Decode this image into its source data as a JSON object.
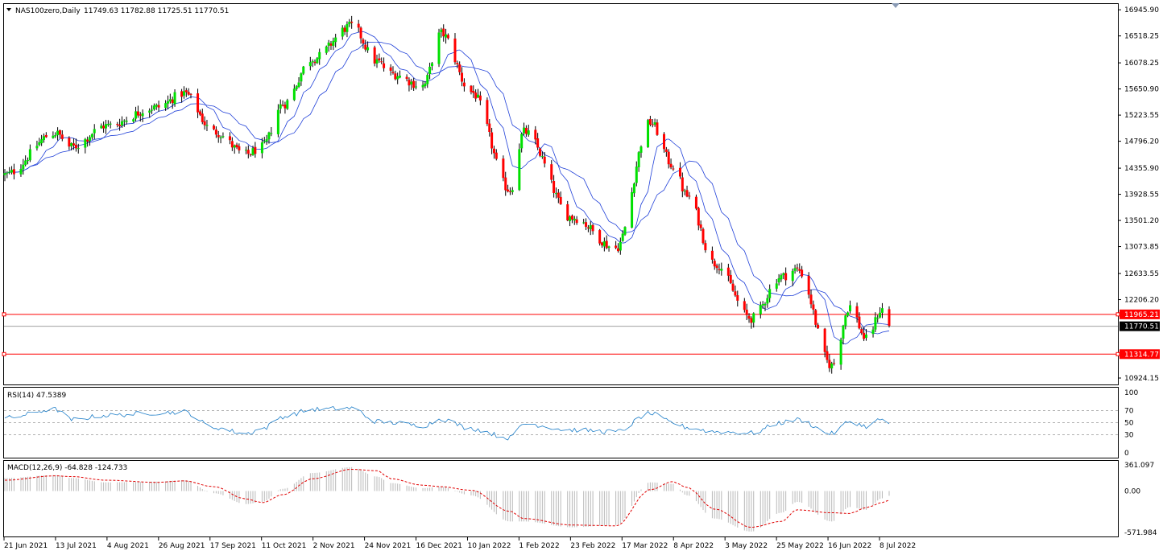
{
  "colors": {
    "background": "#ffffff",
    "frame": "#000000",
    "bull_candle": "#00e000",
    "bear_candle": "#ff0000",
    "wick": "#000000",
    "ma": "#1f3fd8",
    "level_line": "#ff0000",
    "price_line": "#a0a0a0",
    "rsi_line": "#1e7ec8",
    "rsi_levels": "#b0b0b0",
    "macd_hist": "#b8b8b8",
    "macd_signal": "#e00000"
  },
  "chart_data": [
    {
      "type": "candlestick",
      "title": "NAS100zero,Daily",
      "ohlc_header": "11749.63 11782.88 11725.51 11770.51",
      "ylim": [
        10924.15,
        17040
      ],
      "yticks": [
        "16945.90",
        "16518.25",
        "16078.25",
        "15650.90",
        "15223.55",
        "14796.20",
        "14355.90",
        "13928.55",
        "13501.20",
        "13073.85",
        "12633.55",
        "12206.20",
        "10924.15"
      ],
      "x_labels": [
        "21 Jun 2021",
        "13 Jul 2021",
        "4 Aug 2021",
        "26 Aug 2021",
        "17 Sep 2021",
        "11 Oct 2021",
        "2 Nov 2021",
        "24 Nov 2021",
        "16 Dec 2021",
        "10 Jan 2022",
        "1 Feb 2022",
        "23 Feb 2022",
        "17 Mar 2022",
        "8 Apr 2022",
        "3 May 2022",
        "25 May 2022",
        "16 Jun 2022",
        "8 Jul 2022"
      ],
      "x_start": "2021-06-21",
      "x_end": "2022-07-11",
      "horizontal_levels": [
        {
          "label": "11965.21",
          "value": 11965.21
        },
        {
          "label": "11314.77",
          "value": 11314.77
        }
      ],
      "current_price": {
        "label": "11770.51",
        "value": 11770.51
      },
      "close_path": [
        {
          "date": "2021-06-21",
          "value": 14250
        },
        {
          "date": "2021-07-13",
          "value": 14930
        },
        {
          "date": "2021-07-20",
          "value": 14700
        },
        {
          "date": "2021-08-04",
          "value": 15050
        },
        {
          "date": "2021-08-26",
          "value": 15350
        },
        {
          "date": "2021-09-07",
          "value": 15580
        },
        {
          "date": "2021-09-20",
          "value": 14950
        },
        {
          "date": "2021-10-04",
          "value": 14580
        },
        {
          "date": "2021-10-11",
          "value": 14700
        },
        {
          "date": "2021-10-20",
          "value": 15400
        },
        {
          "date": "2021-11-02",
          "value": 16150
        },
        {
          "date": "2021-11-19",
          "value": 16680
        },
        {
          "date": "2021-11-30",
          "value": 16100
        },
        {
          "date": "2021-12-06",
          "value": 15900
        },
        {
          "date": "2021-12-20",
          "value": 15700
        },
        {
          "date": "2021-12-28",
          "value": 16560
        },
        {
          "date": "2022-01-10",
          "value": 15600
        },
        {
          "date": "2022-01-27",
          "value": 14000
        },
        {
          "date": "2022-02-02",
          "value": 14950
        },
        {
          "date": "2022-02-23",
          "value": 13550
        },
        {
          "date": "2022-03-14",
          "value": 13050
        },
        {
          "date": "2022-03-29",
          "value": 15100
        },
        {
          "date": "2022-04-08",
          "value": 14400
        },
        {
          "date": "2022-04-14",
          "value": 13900
        },
        {
          "date": "2022-04-26",
          "value": 12800
        },
        {
          "date": "2022-05-12",
          "value": 11900
        },
        {
          "date": "2022-05-25",
          "value": 12580
        },
        {
          "date": "2022-06-01",
          "value": 12700
        },
        {
          "date": "2022-06-16",
          "value": 11130
        },
        {
          "date": "2022-06-24",
          "value": 12100
        },
        {
          "date": "2022-07-01",
          "value": 11560
        },
        {
          "date": "2022-07-08",
          "value": 12050
        },
        {
          "date": "2022-07-11",
          "value": 11770
        }
      ]
    },
    {
      "type": "line",
      "title": "RSI(14) 47.5389",
      "ylim": [
        0,
        100
      ],
      "yticks": [
        "100",
        "70",
        "50",
        "30",
        "0"
      ],
      "levels": [
        30,
        50,
        70
      ],
      "rsi_path": [
        {
          "date": "2021-06-21",
          "value": 58
        },
        {
          "date": "2021-07-13",
          "value": 72
        },
        {
          "date": "2021-07-20",
          "value": 55
        },
        {
          "date": "2021-08-04",
          "value": 62
        },
        {
          "date": "2021-08-26",
          "value": 66
        },
        {
          "date": "2021-09-07",
          "value": 68
        },
        {
          "date": "2021-09-20",
          "value": 42
        },
        {
          "date": "2021-10-04",
          "value": 32
        },
        {
          "date": "2021-10-11",
          "value": 40
        },
        {
          "date": "2021-10-20",
          "value": 60
        },
        {
          "date": "2021-11-02",
          "value": 72
        },
        {
          "date": "2021-11-19",
          "value": 74
        },
        {
          "date": "2021-11-30",
          "value": 52
        },
        {
          "date": "2021-12-06",
          "value": 50
        },
        {
          "date": "2021-12-20",
          "value": 45
        },
        {
          "date": "2021-12-28",
          "value": 56
        },
        {
          "date": "2022-01-10",
          "value": 40
        },
        {
          "date": "2022-01-27",
          "value": 25
        },
        {
          "date": "2022-02-02",
          "value": 48
        },
        {
          "date": "2022-02-23",
          "value": 38
        },
        {
          "date": "2022-03-14",
          "value": 35
        },
        {
          "date": "2022-03-29",
          "value": 65
        },
        {
          "date": "2022-04-08",
          "value": 50
        },
        {
          "date": "2022-04-14",
          "value": 42
        },
        {
          "date": "2022-04-26",
          "value": 35
        },
        {
          "date": "2022-05-12",
          "value": 33
        },
        {
          "date": "2022-05-25",
          "value": 50
        },
        {
          "date": "2022-06-01",
          "value": 55
        },
        {
          "date": "2022-06-16",
          "value": 32
        },
        {
          "date": "2022-06-24",
          "value": 52
        },
        {
          "date": "2022-07-01",
          "value": 44
        },
        {
          "date": "2022-07-08",
          "value": 56
        },
        {
          "date": "2022-07-11",
          "value": 47.5
        }
      ]
    },
    {
      "type": "bar",
      "title": "MACD(12,26,9) -64.828 -124.733",
      "ylim": [
        -571.984,
        361.097
      ],
      "yticks": [
        "361.097",
        "0.00",
        "-571.984"
      ],
      "macd_path": [
        {
          "date": "2021-06-21",
          "value": 180
        },
        {
          "date": "2021-07-13",
          "value": 220
        },
        {
          "date": "2021-07-20",
          "value": 180
        },
        {
          "date": "2021-08-04",
          "value": 120
        },
        {
          "date": "2021-08-26",
          "value": 130
        },
        {
          "date": "2021-09-07",
          "value": 150
        },
        {
          "date": "2021-09-20",
          "value": -30
        },
        {
          "date": "2021-10-04",
          "value": -180
        },
        {
          "date": "2021-10-11",
          "value": -150
        },
        {
          "date": "2021-10-20",
          "value": 30
        },
        {
          "date": "2021-11-02",
          "value": 250
        },
        {
          "date": "2021-11-19",
          "value": 330
        },
        {
          "date": "2021-11-30",
          "value": 200
        },
        {
          "date": "2021-12-06",
          "value": 110
        },
        {
          "date": "2021-12-20",
          "value": 40
        },
        {
          "date": "2021-12-28",
          "value": 60
        },
        {
          "date": "2022-01-10",
          "value": -60
        },
        {
          "date": "2022-01-27",
          "value": -420
        },
        {
          "date": "2022-02-02",
          "value": -420
        },
        {
          "date": "2022-02-23",
          "value": -500
        },
        {
          "date": "2022-03-14",
          "value": -470
        },
        {
          "date": "2022-03-29",
          "value": 120
        },
        {
          "date": "2022-04-08",
          "value": 100
        },
        {
          "date": "2022-04-14",
          "value": -60
        },
        {
          "date": "2022-04-26",
          "value": -380
        },
        {
          "date": "2022-05-12",
          "value": -560
        },
        {
          "date": "2022-05-25",
          "value": -300
        },
        {
          "date": "2022-06-01",
          "value": -150
        },
        {
          "date": "2022-06-16",
          "value": -420
        },
        {
          "date": "2022-06-24",
          "value": -220
        },
        {
          "date": "2022-07-01",
          "value": -260
        },
        {
          "date": "2022-07-08",
          "value": -100
        },
        {
          "date": "2022-07-11",
          "value": -65
        }
      ],
      "signal_path": [
        {
          "date": "2021-06-21",
          "value": 150
        },
        {
          "date": "2021-07-13",
          "value": 210
        },
        {
          "date": "2021-07-20",
          "value": 200
        },
        {
          "date": "2021-08-04",
          "value": 150
        },
        {
          "date": "2021-08-26",
          "value": 120
        },
        {
          "date": "2021-09-07",
          "value": 140
        },
        {
          "date": "2021-09-20",
          "value": 60
        },
        {
          "date": "2021-10-04",
          "value": -110
        },
        {
          "date": "2021-10-11",
          "value": -160
        },
        {
          "date": "2021-10-20",
          "value": -50
        },
        {
          "date": "2021-11-02",
          "value": 170
        },
        {
          "date": "2021-11-19",
          "value": 300
        },
        {
          "date": "2021-11-30",
          "value": 280
        },
        {
          "date": "2021-12-06",
          "value": 170
        },
        {
          "date": "2021-12-20",
          "value": 80
        },
        {
          "date": "2021-12-28",
          "value": 60
        },
        {
          "date": "2022-01-10",
          "value": 10
        },
        {
          "date": "2022-01-27",
          "value": -280
        },
        {
          "date": "2022-02-02",
          "value": -380
        },
        {
          "date": "2022-02-23",
          "value": -470
        },
        {
          "date": "2022-03-14",
          "value": -480
        },
        {
          "date": "2022-03-29",
          "value": 20
        },
        {
          "date": "2022-04-08",
          "value": 130
        },
        {
          "date": "2022-04-14",
          "value": 50
        },
        {
          "date": "2022-04-26",
          "value": -250
        },
        {
          "date": "2022-05-12",
          "value": -500
        },
        {
          "date": "2022-05-25",
          "value": -420
        },
        {
          "date": "2022-06-01",
          "value": -260
        },
        {
          "date": "2022-06-16",
          "value": -300
        },
        {
          "date": "2022-06-24",
          "value": -310
        },
        {
          "date": "2022-07-01",
          "value": -230
        },
        {
          "date": "2022-07-08",
          "value": -160
        },
        {
          "date": "2022-07-11",
          "value": -125
        }
      ]
    }
  ]
}
